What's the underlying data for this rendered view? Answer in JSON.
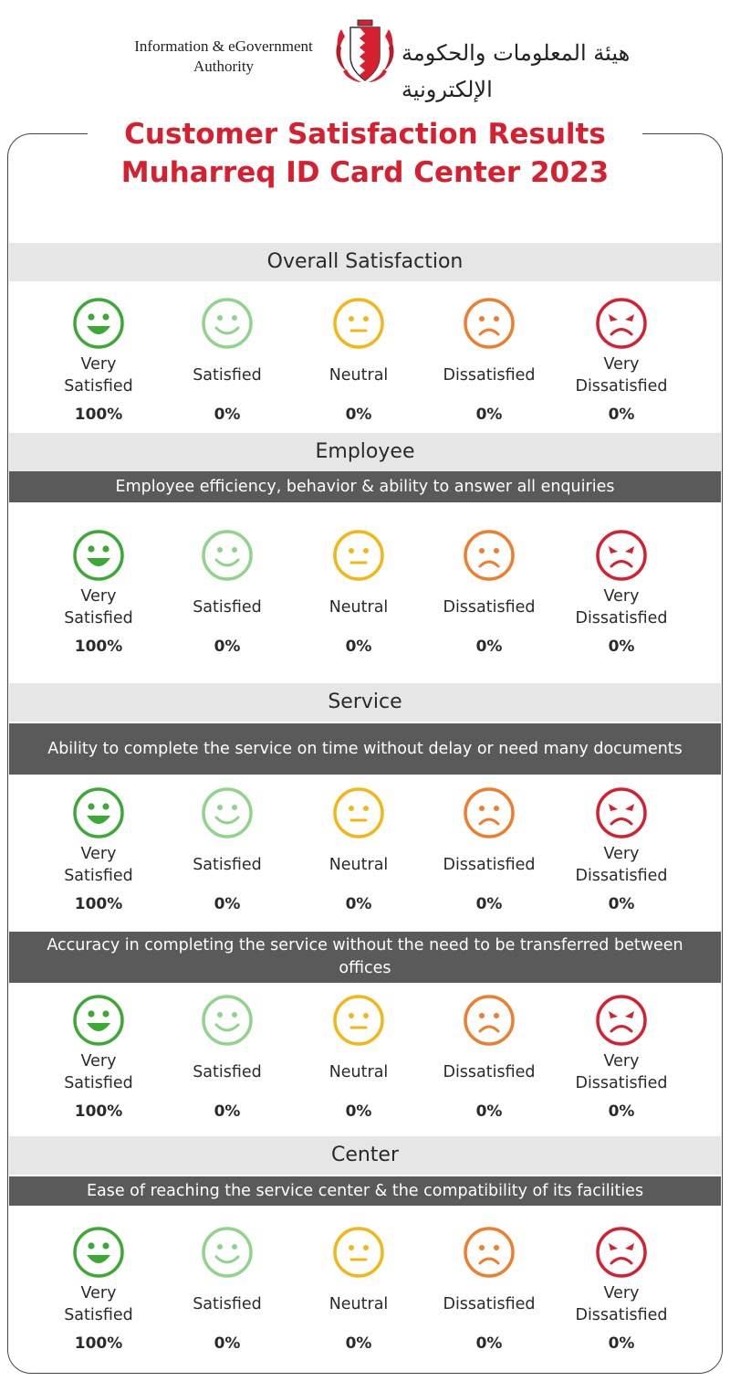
{
  "header": {
    "org_en_line1": "Information & eGovernment",
    "org_en_line2": "Authority",
    "org_ar": "هيئة المعلومات والحكومة الإلكترونية",
    "emblem_icon": "bahrain-emblem-icon"
  },
  "title": {
    "line1": "Customer Satisfaction Results",
    "line2": "Muharreq ID Card Center 2023",
    "color": "#d6202f"
  },
  "rating_labels": {
    "very_satisfied_1": "Very",
    "very_satisfied_2": "Satisfied",
    "satisfied": "Satisfied",
    "neutral": "Neutral",
    "dissatisfied": "Dissatisfied",
    "very_dissatisfied_1": "Very",
    "very_dissatisfied_2": "Dissatisfied"
  },
  "face_colors": {
    "very_satisfied": "#3aaa35",
    "satisfied": "#8fd48a",
    "neutral": "#f4b616",
    "dissatisfied": "#ef7d2e",
    "very_dissatisfied": "#d6202f"
  },
  "sections": {
    "overall": {
      "heading": "Overall Satisfaction",
      "results": [
        "100%",
        "0%",
        "0%",
        "0%",
        "0%"
      ]
    },
    "employee": {
      "heading": "Employee",
      "question": "Employee efficiency, behavior & ability to answer all enquiries",
      "results": [
        "100%",
        "0%",
        "0%",
        "0%",
        "0%"
      ]
    },
    "service": {
      "heading": "Service",
      "question1": "Ability to complete the service on time without delay or need many documents",
      "results1": [
        "100%",
        "0%",
        "0%",
        "0%",
        "0%"
      ],
      "question2": "Accuracy in completing the service without the need to be transferred between offices",
      "results2": [
        "100%",
        "0%",
        "0%",
        "0%",
        "0%"
      ]
    },
    "center": {
      "heading": "Center",
      "question": "Ease of reaching the service center & the compatibility of its facilities",
      "results": [
        "100%",
        "0%",
        "0%",
        "0%",
        "0%"
      ]
    }
  }
}
